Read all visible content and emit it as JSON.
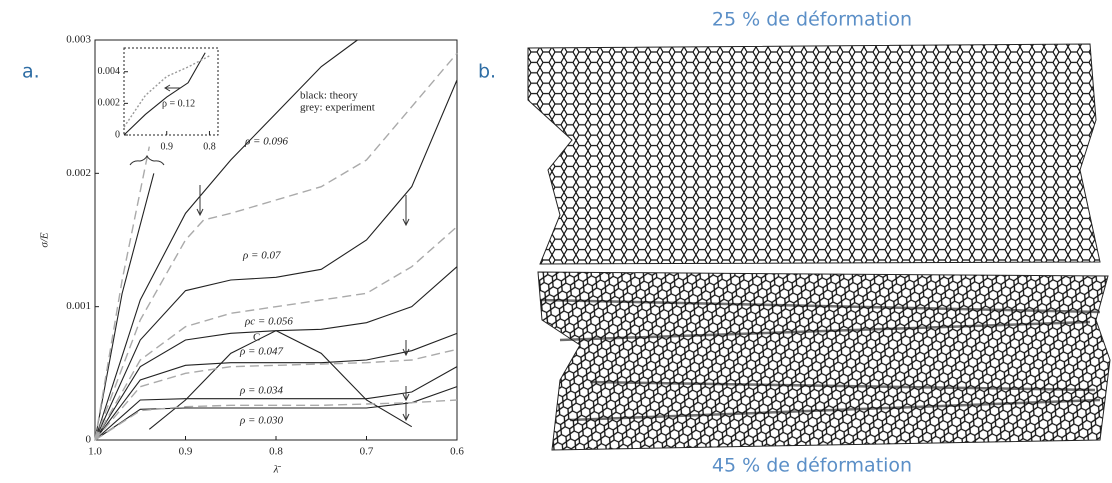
{
  "labels": {
    "a": "a.",
    "b": "b.",
    "top": "25 % de déformation",
    "bottom": "45 % de déformation"
  },
  "chart_data": [
    {
      "type": "line",
      "x_label": "λ̄",
      "y_label": "σ/E",
      "xlim": [
        1.0,
        0.6
      ],
      "ylim": [
        0,
        0.003
      ],
      "xticks": [
        {
          "value": 1.0,
          "label": "1.0"
        },
        0.9,
        0.8,
        0.7,
        0.6
      ],
      "yticks": [
        0,
        0.001,
        0.002,
        0.003
      ],
      "annotations": [
        "black: theory",
        "grey: experiment",
        "C"
      ],
      "series": [
        {
          "name": "ρ = 0.096",
          "color": "#222222",
          "x": [
            1.0,
            0.95,
            0.9,
            0.85,
            0.8,
            0.75,
            0.71
          ],
          "values": [
            0,
            0.00105,
            0.0017,
            0.0021,
            0.00245,
            0.0028,
            0.003
          ]
        },
        {
          "name": "ρ = 0.07",
          "color": "#222222",
          "x": [
            1.0,
            0.95,
            0.9,
            0.85,
            0.8,
            0.75,
            0.7,
            0.65,
            0.6
          ],
          "values": [
            0,
            0.00075,
            0.00112,
            0.0012,
            0.00122,
            0.00128,
            0.0015,
            0.0019,
            0.0027
          ]
        },
        {
          "name": "ρc = 0.056",
          "color": "#222222",
          "x": [
            1.0,
            0.95,
            0.9,
            0.85,
            0.8,
            0.75,
            0.7,
            0.65,
            0.6
          ],
          "values": [
            0,
            0.00055,
            0.00075,
            0.0008,
            0.00082,
            0.00083,
            0.00088,
            0.001,
            0.0013
          ]
        },
        {
          "name": "ρ = 0.047",
          "color": "#222222",
          "x": [
            1.0,
            0.95,
            0.9,
            0.85,
            0.8,
            0.75,
            0.7,
            0.65,
            0.6
          ],
          "values": [
            0,
            0.00045,
            0.00056,
            0.00058,
            0.00058,
            0.00058,
            0.0006,
            0.00067,
            0.0008
          ]
        },
        {
          "name": "ρ = 0.034",
          "color": "#222222",
          "x": [
            1.0,
            0.95,
            0.9,
            0.85,
            0.8,
            0.75,
            0.7,
            0.65,
            0.6
          ],
          "values": [
            0,
            0.0003,
            0.00031,
            0.00031,
            0.00031,
            0.00031,
            0.00031,
            0.00036,
            0.00055
          ]
        },
        {
          "name": "ρ = 0.030",
          "color": "#222222",
          "x": [
            1.0,
            0.95,
            0.9,
            0.85,
            0.8,
            0.75,
            0.7,
            0.65,
            0.6
          ],
          "values": [
            0,
            0.00023,
            0.00024,
            0.00024,
            0.00024,
            0.00024,
            0.00024,
            0.00028,
            0.0004
          ]
        },
        {
          "color": "#222222",
          "x": [
            1.0,
            0.97,
            0.935
          ],
          "values": [
            0,
            0.0011,
            0.002
          ]
        },
        {
          "color": "#222222",
          "x": [
            0.94,
            0.9,
            0.85,
            0.8,
            0.75,
            0.7,
            0.65
          ],
          "values": [
            8e-05,
            0.0003,
            0.00065,
            0.00082,
            0.00065,
            0.0003,
            0.0001
          ]
        },
        {
          "color": "#aaaaaa",
          "dash": true,
          "x": [
            1.0,
            0.97,
            0.94
          ],
          "values": [
            0,
            0.0012,
            0.0022
          ]
        },
        {
          "color": "#aaaaaa",
          "dash": true,
          "x": [
            1.0,
            0.95,
            0.9,
            0.88,
            0.85,
            0.8,
            0.75,
            0.7,
            0.65,
            0.6
          ],
          "values": [
            0,
            0.0009,
            0.0015,
            0.00165,
            0.0017,
            0.0018,
            0.0019,
            0.0021,
            0.0025,
            0.0029
          ]
        },
        {
          "color": "#aaaaaa",
          "dash": true,
          "x": [
            1.0,
            0.95,
            0.9,
            0.85,
            0.8,
            0.75,
            0.7,
            0.65,
            0.6
          ],
          "values": [
            0,
            0.0006,
            0.00085,
            0.00095,
            0.001,
            0.00105,
            0.0011,
            0.0013,
            0.0016
          ]
        },
        {
          "color": "#aaaaaa",
          "dash": true,
          "x": [
            1.0,
            0.95,
            0.9,
            0.85,
            0.8,
            0.75,
            0.7,
            0.65,
            0.6
          ],
          "values": [
            0,
            0.0004,
            0.0005,
            0.00055,
            0.00056,
            0.00057,
            0.00058,
            0.0006,
            0.00068
          ]
        },
        {
          "color": "#aaaaaa",
          "dash": true,
          "x": [
            1.0,
            0.95,
            0.9,
            0.85,
            0.8,
            0.75,
            0.7,
            0.65,
            0.6
          ],
          "values": [
            0,
            0.00022,
            0.00025,
            0.00026,
            0.00026,
            0.00026,
            0.00027,
            0.00028,
            0.0003
          ]
        }
      ]
    },
    {
      "type": "line",
      "xlim": [
        1.0,
        0.78
      ],
      "ylim": [
        0,
        0.0055
      ],
      "xticks": [
        0.9,
        0.8
      ],
      "yticks": [
        0,
        0.002,
        0.004
      ],
      "annotations": [
        "ρ = 0.12"
      ],
      "series": [
        {
          "color": "#222222",
          "x": [
            1.0,
            0.95,
            0.9,
            0.85,
            0.81
          ],
          "values": [
            0,
            0.0013,
            0.0024,
            0.0033,
            0.0052
          ]
        },
        {
          "color": "#999999",
          "dash": true,
          "x": [
            1.0,
            0.95,
            0.9,
            0.85,
            0.8
          ],
          "values": [
            0.0005,
            0.0025,
            0.0037,
            0.0043,
            0.005
          ]
        }
      ]
    }
  ]
}
